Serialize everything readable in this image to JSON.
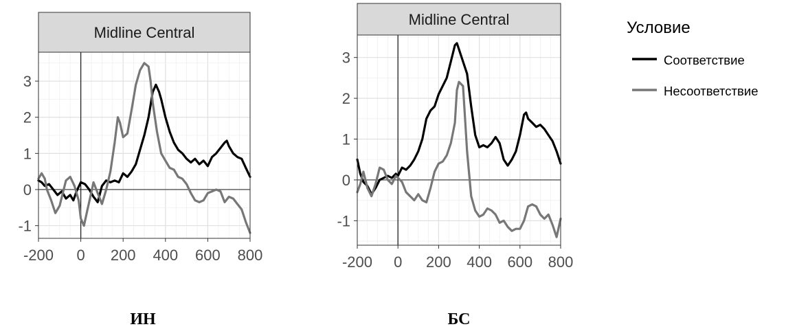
{
  "figure": {
    "legend_title": "Условие",
    "legend_position": "right"
  },
  "chart_data": [
    {
      "type": "line",
      "panel_label": "ИН",
      "strip_title": "Midline Central",
      "xlim": [
        -200,
        800
      ],
      "ylim": [
        -1.35,
        3.8
      ],
      "x_ticks": [
        -200,
        0,
        200,
        400,
        600,
        800
      ],
      "y_ticks": [
        -1,
        0,
        1,
        2,
        3
      ],
      "grid": true,
      "series": [
        {
          "name": "Соответствие",
          "color": "#000000",
          "x": [
            -200,
            -185,
            -170,
            -150,
            -130,
            -110,
            -90,
            -70,
            -50,
            -35,
            -20,
            0,
            20,
            40,
            60,
            80,
            100,
            120,
            140,
            160,
            180,
            200,
            220,
            240,
            260,
            280,
            300,
            320,
            340,
            355,
            370,
            380,
            400,
            420,
            440,
            460,
            480,
            500,
            520,
            540,
            560,
            580,
            600,
            620,
            640,
            660,
            680,
            690,
            700,
            720,
            740,
            760,
            780,
            800
          ],
          "y": [
            0.25,
            0.2,
            0.1,
            0.15,
            0.0,
            -0.15,
            -0.05,
            -0.25,
            -0.15,
            -0.3,
            -0.05,
            0.2,
            0.15,
            0.0,
            -0.2,
            -0.35,
            0.1,
            0.25,
            0.2,
            0.25,
            0.2,
            0.45,
            0.35,
            0.5,
            0.7,
            1.1,
            1.5,
            2.0,
            2.7,
            2.9,
            2.7,
            2.5,
            2.0,
            1.6,
            1.3,
            1.1,
            1.0,
            0.85,
            0.75,
            0.85,
            0.7,
            0.8,
            0.65,
            0.9,
            1.0,
            1.15,
            1.3,
            1.35,
            1.2,
            1.0,
            0.9,
            0.85,
            0.6,
            0.35
          ]
        },
        {
          "name": "Несоответствие",
          "color": "#777777",
          "x": [
            -200,
            -185,
            -170,
            -160,
            -140,
            -120,
            -100,
            -85,
            -70,
            -50,
            -30,
            -10,
            0,
            15,
            30,
            45,
            60,
            80,
            100,
            110,
            120,
            140,
            160,
            175,
            185,
            200,
            220,
            240,
            260,
            280,
            300,
            320,
            330,
            340,
            350,
            360,
            380,
            400,
            420,
            440,
            460,
            480,
            500,
            520,
            540,
            560,
            580,
            600,
            620,
            640,
            660,
            680,
            700,
            720,
            740,
            760,
            780,
            800
          ],
          "y": [
            0.3,
            0.45,
            0.3,
            0.0,
            -0.3,
            -0.65,
            -0.45,
            -0.1,
            0.25,
            0.35,
            0.1,
            -0.3,
            -0.8,
            -1.0,
            -0.6,
            -0.2,
            0.2,
            -0.1,
            -0.4,
            -0.2,
            0.0,
            0.5,
            1.3,
            2.0,
            1.85,
            1.45,
            1.55,
            2.2,
            2.9,
            3.3,
            3.5,
            3.4,
            3.0,
            2.4,
            2.0,
            1.6,
            1.0,
            0.8,
            0.6,
            0.55,
            0.35,
            0.3,
            0.15,
            -0.1,
            -0.3,
            -0.35,
            -0.3,
            -0.1,
            -0.05,
            0.0,
            -0.05,
            -0.35,
            -0.2,
            -0.25,
            -0.4,
            -0.55,
            -0.9,
            -1.2
          ]
        }
      ]
    },
    {
      "type": "line",
      "panel_label": "БС",
      "strip_title": "Midline Central",
      "xlim": [
        -200,
        800
      ],
      "ylim": [
        -1.6,
        3.55
      ],
      "x_ticks": [
        -200,
        0,
        200,
        400,
        600,
        800
      ],
      "y_ticks": [
        -1,
        0,
        1,
        2,
        3
      ],
      "grid": true,
      "series": [
        {
          "name": "Соответствие",
          "color": "#000000",
          "x": [
            -200,
            -185,
            -170,
            -150,
            -130,
            -110,
            -90,
            -70,
            -50,
            -30,
            -10,
            0,
            20,
            40,
            60,
            80,
            100,
            120,
            140,
            160,
            180,
            200,
            220,
            240,
            260,
            280,
            290,
            300,
            320,
            340,
            360,
            380,
            400,
            420,
            440,
            460,
            480,
            500,
            520,
            540,
            560,
            580,
            600,
            620,
            630,
            640,
            660,
            680,
            700,
            720,
            740,
            760,
            780,
            800
          ],
          "y": [
            0.5,
            0.15,
            -0.05,
            -0.15,
            -0.35,
            -0.2,
            0.0,
            0.05,
            0.1,
            0.05,
            0.15,
            0.1,
            0.3,
            0.25,
            0.35,
            0.5,
            0.7,
            1.0,
            1.5,
            1.7,
            1.8,
            2.1,
            2.3,
            2.5,
            2.9,
            3.3,
            3.35,
            3.2,
            2.9,
            2.6,
            1.8,
            1.1,
            0.8,
            0.85,
            0.8,
            0.9,
            1.05,
            0.9,
            0.5,
            0.35,
            0.5,
            0.7,
            1.1,
            1.6,
            1.65,
            1.5,
            1.4,
            1.3,
            1.35,
            1.25,
            1.1,
            0.95,
            0.7,
            0.4
          ]
        },
        {
          "name": "Несоответствие",
          "color": "#777777",
          "x": [
            -200,
            -185,
            -170,
            -150,
            -130,
            -110,
            -90,
            -70,
            -50,
            -30,
            -10,
            0,
            20,
            40,
            60,
            80,
            100,
            120,
            140,
            160,
            180,
            200,
            220,
            240,
            260,
            280,
            290,
            300,
            320,
            330,
            340,
            360,
            380,
            400,
            420,
            440,
            460,
            480,
            500,
            520,
            540,
            560,
            580,
            600,
            620,
            640,
            660,
            680,
            700,
            720,
            740,
            760,
            780,
            800
          ],
          "y": [
            -0.3,
            -0.1,
            0.2,
            -0.2,
            -0.4,
            -0.1,
            0.3,
            0.25,
            0.0,
            -0.1,
            0.1,
            0.05,
            -0.05,
            -0.3,
            -0.4,
            -0.5,
            -0.35,
            -0.5,
            -0.55,
            -0.2,
            0.2,
            0.4,
            0.45,
            0.6,
            0.9,
            1.4,
            2.2,
            2.4,
            2.3,
            1.5,
            0.7,
            -0.4,
            -0.75,
            -0.9,
            -0.85,
            -0.7,
            -0.75,
            -0.85,
            -1.05,
            -1.0,
            -1.15,
            -1.25,
            -1.2,
            -1.2,
            -1.0,
            -0.65,
            -0.6,
            -0.65,
            -0.85,
            -0.95,
            -0.85,
            -1.1,
            -1.4,
            -0.95
          ]
        }
      ]
    }
  ]
}
